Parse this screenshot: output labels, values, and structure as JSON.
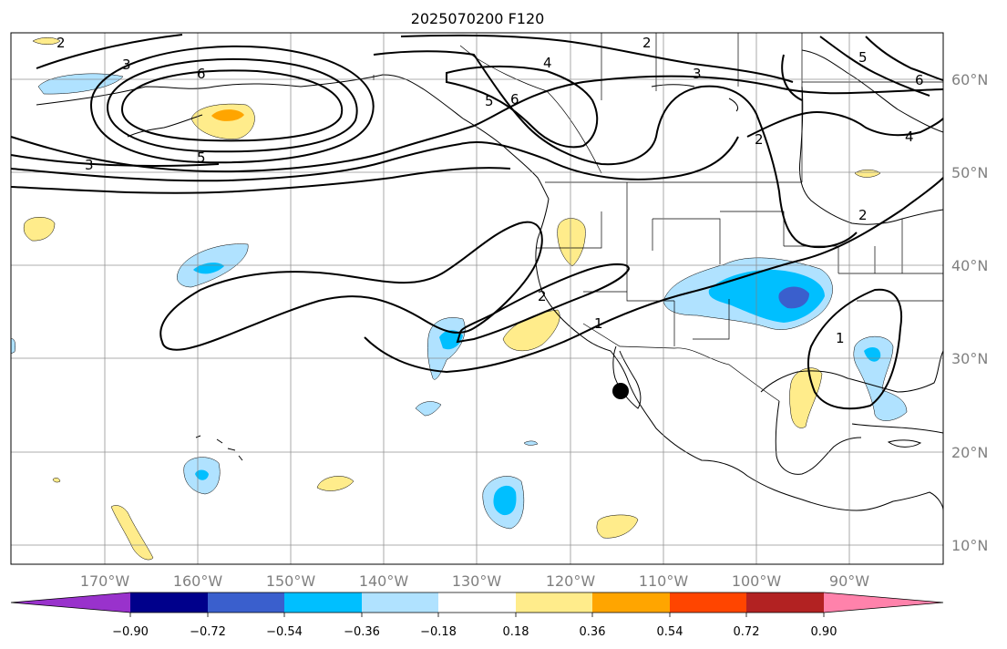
{
  "title": "2025070200 F120",
  "map": {
    "longitude_labels": [
      "170°W",
      "160°W",
      "150°W",
      "140°W",
      "130°W",
      "120°W",
      "110°W",
      "100°W",
      "90°W"
    ],
    "latitude_labels": [
      "60°N",
      "50°N",
      "40°N",
      "30°N",
      "20°N",
      "10°N"
    ],
    "contour_labels": [
      "2",
      "3",
      "6",
      "5",
      "3",
      "2",
      "4",
      "3",
      "5",
      "6",
      "5",
      "6",
      "4",
      "2",
      "2",
      "1",
      "2",
      "1"
    ],
    "marker": "filled-black-circle"
  },
  "colorbar": {
    "ticks": [
      "−0.90",
      "−0.72",
      "−0.54",
      "−0.36",
      "−0.18",
      "0.18",
      "0.36",
      "0.54",
      "0.72",
      "0.90"
    ],
    "colors": [
      "#9932cc",
      "#00008b",
      "#3a5fcd",
      "#00bfff",
      "#b0e2ff",
      "#ffffff",
      "#ffec8b",
      "#ffa500",
      "#ff4500",
      "#b22222",
      "#ff82ab"
    ]
  }
}
